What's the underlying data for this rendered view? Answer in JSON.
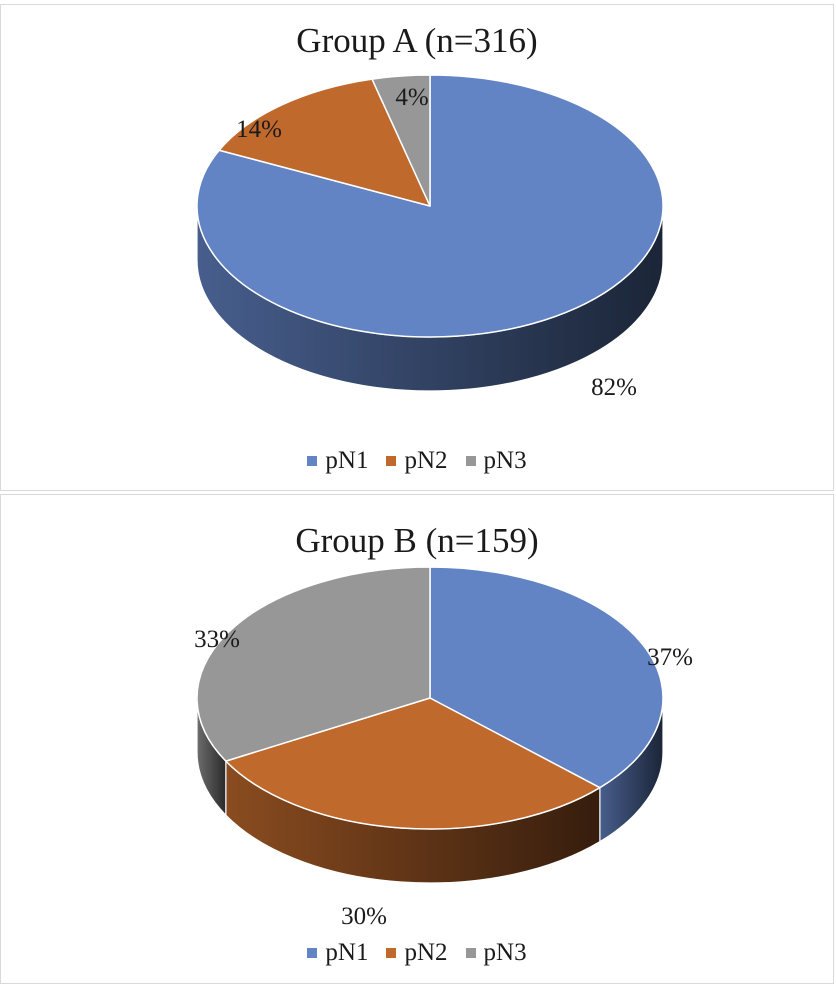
{
  "chart_data": [
    {
      "type": "pie",
      "title": "Group A (n=316)",
      "categories": [
        "pN1",
        "pN2",
        "pN3"
      ],
      "values": [
        82,
        14,
        4
      ],
      "labels": [
        "82%",
        "14%",
        "4%"
      ],
      "legend": {
        "placement": "bottom",
        "entries": [
          "pN1",
          "pN2",
          "pN3"
        ]
      }
    },
    {
      "type": "pie",
      "title": "Group B  (n=159)",
      "categories": [
        "pN1",
        "pN2",
        "pN3"
      ],
      "values": [
        37,
        30,
        33
      ],
      "labels": [
        "37%",
        "30%",
        "33%"
      ],
      "legend": {
        "placement": "bottom",
        "entries": [
          "pN1",
          "pN2",
          "pN3"
        ]
      }
    }
  ],
  "colors": {
    "pN1": "#6283c4",
    "pN2": "#c0692d",
    "pN3": "#979797"
  }
}
